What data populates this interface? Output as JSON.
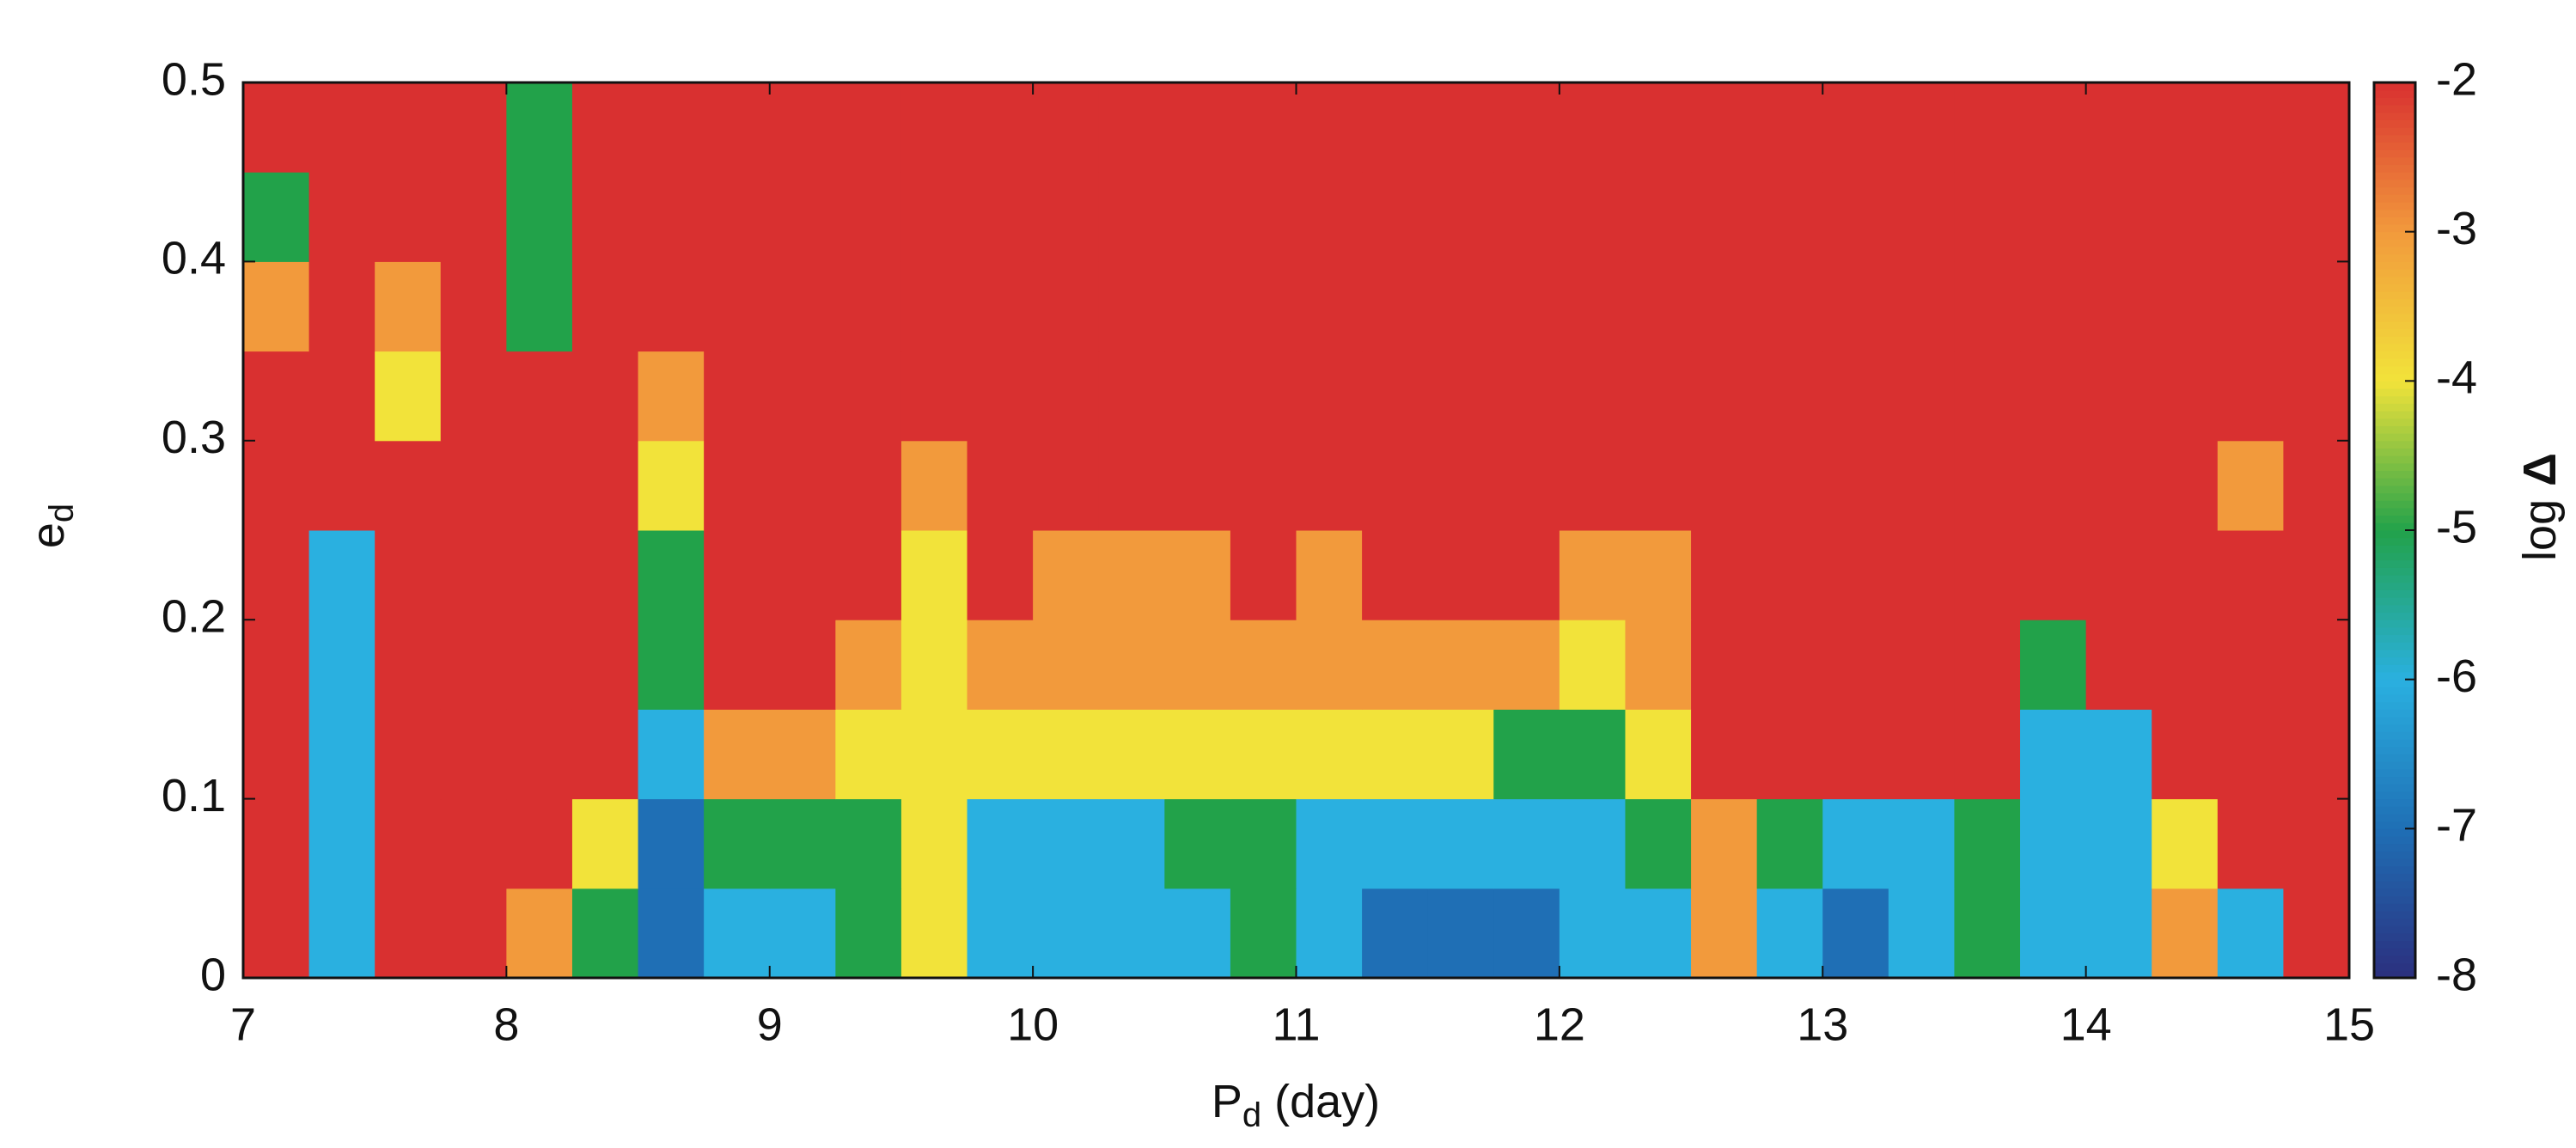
{
  "chart_data": {
    "type": "heatmap",
    "x_label": [
      "P",
      "d",
      " (day)"
    ],
    "y_label": [
      "e",
      "d"
    ],
    "colorbar_label": [
      "log ",
      "Δ"
    ],
    "xlim": [
      7,
      15
    ],
    "xticks": [
      7,
      8,
      9,
      10,
      11,
      12,
      13,
      14,
      15
    ],
    "ylim": [
      0,
      0.5
    ],
    "yticks": [
      0,
      0.1,
      0.2,
      0.3,
      0.4,
      0.5
    ],
    "zlim": [
      -8,
      -2
    ],
    "zticks": [
      -2,
      -3,
      -4,
      -5,
      -6,
      -7,
      -8
    ],
    "colorscale": [
      "#2b2f7e",
      "#1f6fb5",
      "#2ab0e0",
      "#22a24a",
      "#f2e33a",
      "#f29a3c",
      "#d93030"
    ],
    "xbins": [
      7,
      7.25,
      7.5,
      7.75,
      8,
      8.25,
      8.5,
      8.75,
      9,
      9.25,
      9.5,
      9.75,
      10,
      10.25,
      10.5,
      10.75,
      11,
      11.25,
      11.5,
      11.75,
      12,
      12.25,
      12.5,
      12.75,
      13,
      13.25,
      13.5,
      13.75,
      14,
      14.25,
      14.5,
      14.75,
      15
    ],
    "ybins": [
      0,
      0.05,
      0.1,
      0.15,
      0.2,
      0.25,
      0.3,
      0.35,
      0.4,
      0.45,
      0.5
    ],
    "values": [
      [
        -2,
        -6,
        -2,
        -2,
        -3,
        -5,
        -7,
        -6,
        -6,
        -5,
        -4,
        -6,
        -6,
        -6,
        -6,
        -5,
        -6,
        -7,
        -7,
        -7,
        -6,
        -6,
        -3,
        -6,
        -7,
        -6,
        -5,
        -6,
        -6,
        -3,
        -6,
        -2
      ],
      [
        -2,
        -6,
        -2,
        -2,
        -2,
        -4,
        -7,
        -5,
        -5,
        -5,
        -4,
        -6,
        -6,
        -6,
        -5,
        -5,
        -6,
        -6,
        -6,
        -6,
        -6,
        -5,
        -3,
        -5,
        -6,
        -6,
        -5,
        -6,
        -6,
        -4,
        -2,
        -2
      ],
      [
        -2,
        -6,
        -2,
        -2,
        -2,
        -2,
        -6,
        -3,
        -3,
        -4,
        -4,
        -4,
        -4,
        -4,
        -4,
        -4,
        -4,
        -4,
        -4,
        -5,
        -5,
        -4,
        -2,
        -2,
        -2,
        -2,
        -2,
        -6,
        -6,
        -2,
        -2,
        -2
      ],
      [
        -2,
        -6,
        -2,
        -2,
        -2,
        -2,
        -5,
        -2,
        -2,
        -3,
        -4,
        -3,
        -3,
        -3,
        -3,
        -3,
        -3,
        -3,
        -3,
        -3,
        -4,
        -3,
        -2,
        -2,
        -2,
        -2,
        -2,
        -5,
        -2,
        -2,
        -2,
        -2
      ],
      [
        -2,
        -6,
        -2,
        -2,
        -2,
        -2,
        -5,
        -2,
        -2,
        -2,
        -4,
        -2,
        -3,
        -3,
        -3,
        -2,
        -3,
        -2,
        -2,
        -2,
        -3,
        -3,
        -2,
        -2,
        -2,
        -2,
        -2,
        -2,
        -2,
        -2,
        -2,
        -2
      ],
      [
        -2,
        -2,
        -2,
        -2,
        -2,
        -2,
        -4,
        -2,
        -2,
        -2,
        -3,
        -2,
        -2,
        -2,
        -2,
        -2,
        -2,
        -2,
        -2,
        -2,
        -2,
        -2,
        -2,
        -2,
        -2,
        -2,
        -2,
        -2,
        -2,
        -2,
        -3,
        -2
      ],
      [
        -2,
        -2,
        -4,
        -2,
        -2,
        -2,
        -3,
        -2,
        -2,
        -2,
        -2,
        -2,
        -2,
        -2,
        -2,
        -2,
        -2,
        -2,
        -2,
        -2,
        -2,
        -2,
        -2,
        -2,
        -2,
        -2,
        -2,
        -2,
        -2,
        -2,
        -2,
        -2
      ],
      [
        -3,
        -2,
        -3,
        -2,
        -5,
        -2,
        -2,
        -2,
        -2,
        -2,
        -2,
        -2,
        -2,
        -2,
        -2,
        -2,
        -2,
        -2,
        -2,
        -2,
        -2,
        -2,
        -2,
        -2,
        -2,
        -2,
        -2,
        -2,
        -2,
        -2,
        -2,
        -2
      ],
      [
        -5,
        -2,
        -2,
        -2,
        -5,
        -2,
        -2,
        -2,
        -2,
        -2,
        -2,
        -2,
        -2,
        -2,
        -2,
        -2,
        -2,
        -2,
        -2,
        -2,
        -2,
        -2,
        -2,
        -2,
        -2,
        -2,
        -2,
        -2,
        -2,
        -2,
        -2,
        -2
      ],
      [
        -2,
        -2,
        -2,
        -2,
        -5,
        -2,
        -2,
        -2,
        -2,
        -2,
        -2,
        -2,
        -2,
        -2,
        -2,
        -2,
        -2,
        -2,
        -2,
        -2,
        -2,
        -2,
        -2,
        -2,
        -2,
        -2,
        -2,
        -2,
        -2,
        -2,
        -2,
        -2
      ]
    ]
  }
}
